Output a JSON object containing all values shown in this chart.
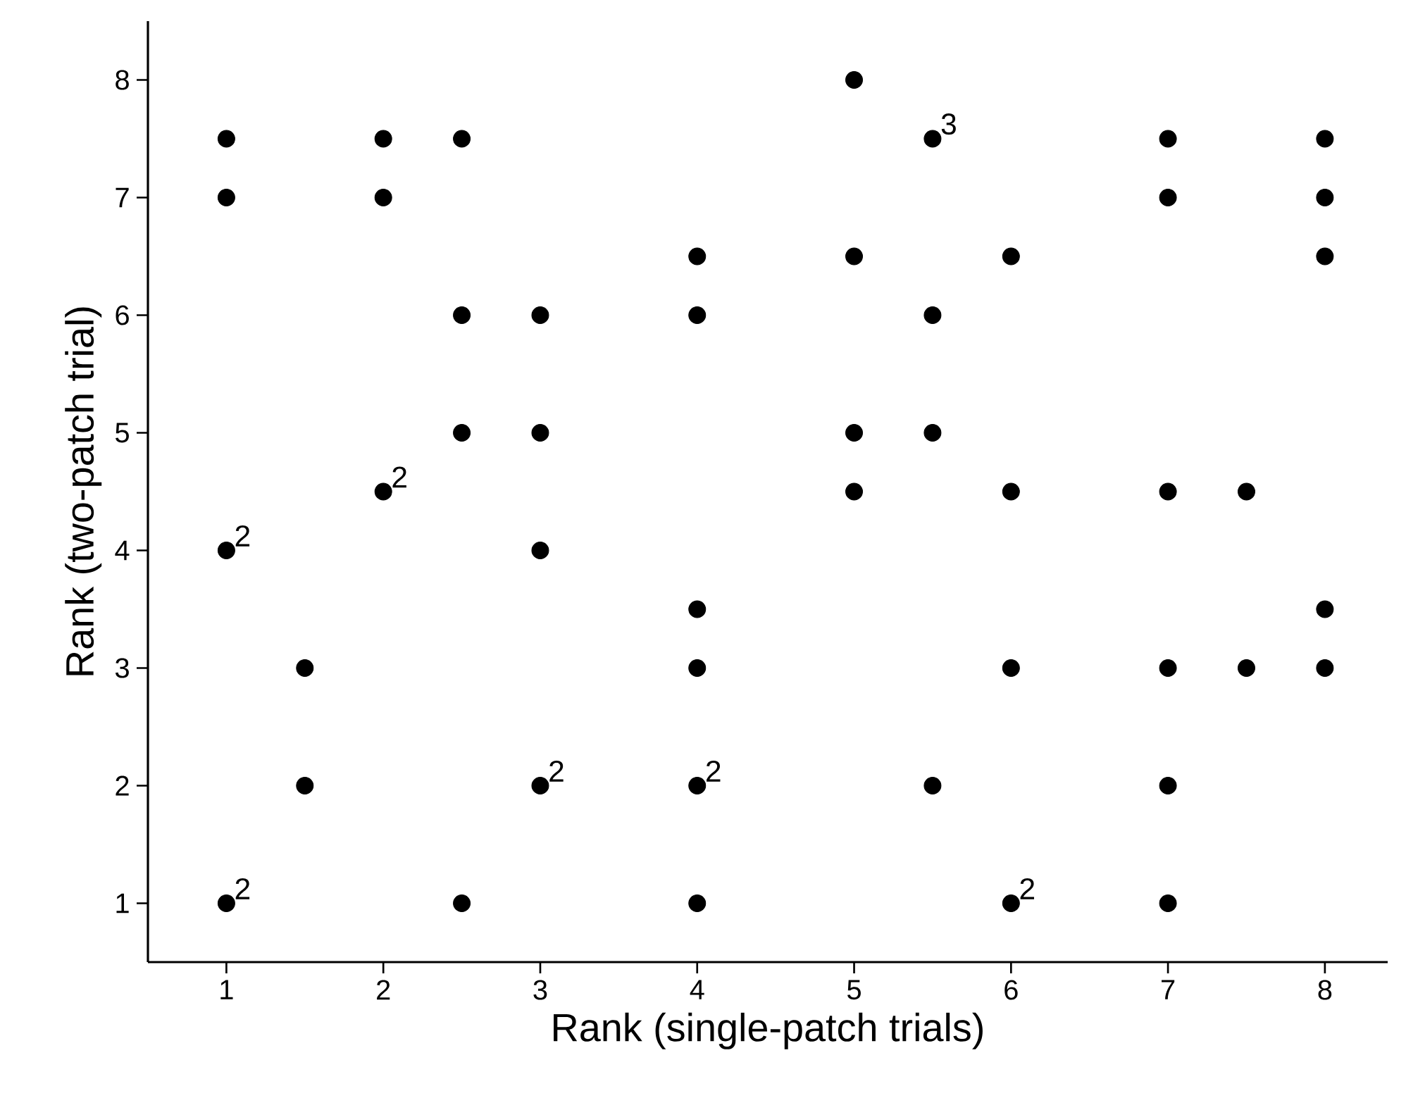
{
  "chart_data": {
    "type": "scatter",
    "xlabel": "Rank (single-patch trials)",
    "ylabel": "Rank (two-patch trial)",
    "marker": "circle",
    "xlim": [
      0.5,
      8.4
    ],
    "ylim": [
      0.5,
      8.5
    ],
    "xticks": [
      1,
      2,
      3,
      4,
      5,
      6,
      7,
      8
    ],
    "yticks": [
      1,
      2,
      3,
      4,
      5,
      6,
      7,
      8
    ],
    "series": [
      {
        "color": "#000000",
        "x": [
          1,
          1,
          1,
          1,
          1.5,
          1.5,
          2,
          2,
          2,
          2.5,
          2.5,
          2.5,
          2.5,
          3,
          3,
          3,
          3,
          4,
          4,
          4,
          4,
          4,
          4,
          5,
          5,
          5,
          5,
          5.5,
          5.5,
          5.5,
          5.5,
          6,
          6,
          6,
          6,
          7,
          7,
          7,
          7,
          7,
          7,
          7.5,
          7.5,
          8,
          8,
          8,
          8,
          8
        ],
        "values": [
          7.5,
          7,
          4,
          1,
          3,
          2,
          7.5,
          7,
          4.5,
          7.5,
          6,
          5,
          1,
          6,
          5,
          4,
          2,
          6.5,
          6,
          3.5,
          3,
          2,
          1,
          8,
          6.5,
          5,
          4.5,
          7.5,
          6,
          5,
          2,
          6.5,
          4.5,
          3,
          1,
          7.5,
          7,
          4.5,
          3,
          2,
          1,
          4.5,
          3,
          7.5,
          7,
          6.5,
          3.5,
          3
        ]
      }
    ],
    "annotations": [
      {
        "text": "2",
        "x": 1,
        "y": 4
      },
      {
        "text": "2",
        "x": 1,
        "y": 1
      },
      {
        "text": "2",
        "x": 2,
        "y": 4.5
      },
      {
        "text": "2",
        "x": 3,
        "y": 2
      },
      {
        "text": "2",
        "x": 4,
        "y": 2
      },
      {
        "text": "3",
        "x": 5.5,
        "y": 7.5
      },
      {
        "text": "2",
        "x": 6,
        "y": 1
      }
    ]
  }
}
